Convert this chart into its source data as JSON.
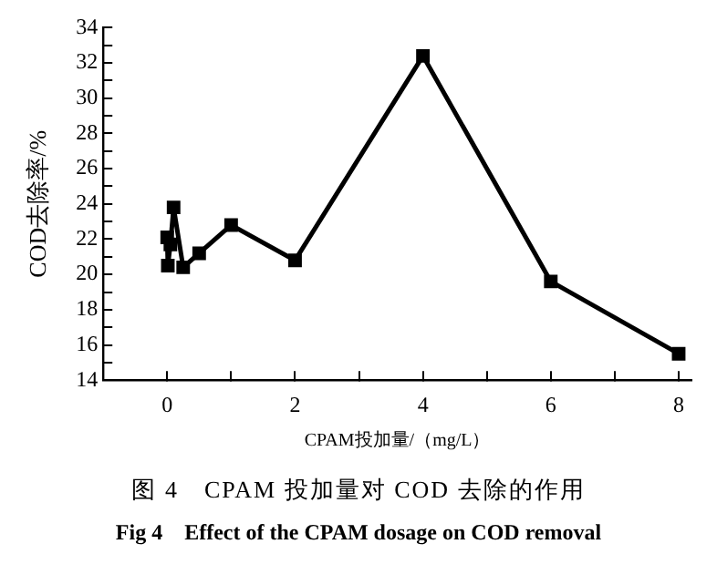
{
  "chart_data": {
    "type": "line",
    "title": "图 4　CPAM 投加量对 COD 去除的作用",
    "subtitle": "Fig 4　Effect of the CPAM dosage on COD removal",
    "xlabel": "CPAM投加量/（mg/L）",
    "ylabel": "COD去除率/%",
    "x": [
      0,
      0.01,
      0.05,
      0.1,
      0.25,
      0.5,
      1,
      2,
      4,
      6,
      8
    ],
    "series": [
      {
        "color": "#000000",
        "values": [
          22.1,
          20.5,
          21.7,
          23.8,
          20.4,
          21.2,
          22.8,
          20.8,
          32.4,
          19.6,
          15.5
        ]
      }
    ],
    "xlim": [
      -1,
      8.2
    ],
    "xticks": [
      0,
      {
        "value": 1,
        "label": null
      },
      2,
      {
        "value": 3,
        "label": null
      },
      4,
      {
        "value": 5,
        "label": null
      },
      6,
      {
        "value": 7,
        "label": null
      },
      8
    ],
    "ylim": [
      14,
      34
    ],
    "yticks": [
      14,
      {
        "value": 15,
        "label": null
      },
      16,
      {
        "value": 17,
        "label": null
      },
      18,
      {
        "value": 19,
        "label": null
      },
      20,
      {
        "value": 21,
        "label": null
      },
      22,
      {
        "value": 23,
        "label": null
      },
      24,
      {
        "value": 25,
        "label": null
      },
      26,
      {
        "value": 27,
        "label": null
      },
      28,
      {
        "value": 29,
        "label": null
      },
      30,
      {
        "value": 31,
        "label": null
      },
      32,
      {
        "value": 33,
        "label": null
      },
      34
    ],
    "grid": false,
    "legend": false,
    "marker": "square",
    "line_style": "solid"
  }
}
